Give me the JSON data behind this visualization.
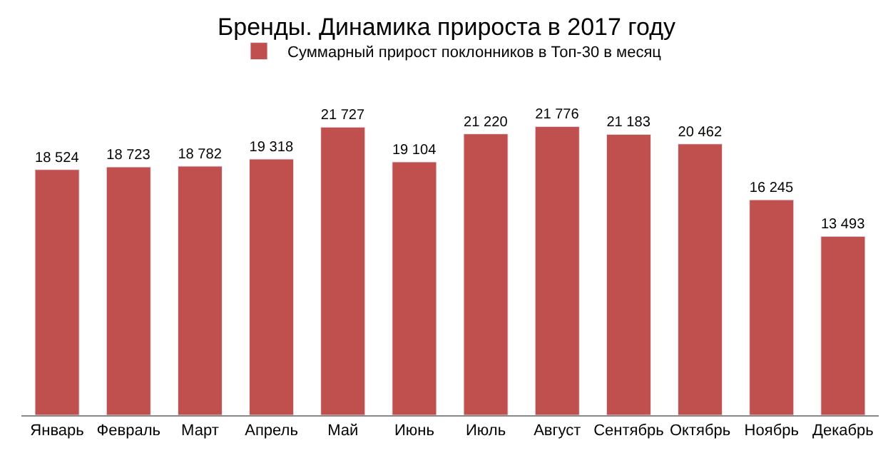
{
  "chart_data": {
    "type": "bar",
    "title": "Бренды. Динамика прироста в 2017 году",
    "categories": [
      "Январь",
      "Февраль",
      "Март",
      "Апрель",
      "Май",
      "Июнь",
      "Июль",
      "Август",
      "Сентябрь",
      "Октябрь",
      "Ноябрь",
      "Декабрь"
    ],
    "series": [
      {
        "name": "Суммарный прирост поклонников в Топ-30 в месяц",
        "color": "#c0504d",
        "values": [
          18524,
          18723,
          18782,
          19318,
          21727,
          19104,
          21220,
          21776,
          21183,
          20462,
          16245,
          13493
        ]
      }
    ],
    "data_labels": true,
    "legend": "top",
    "tick_labels": "x"
  }
}
